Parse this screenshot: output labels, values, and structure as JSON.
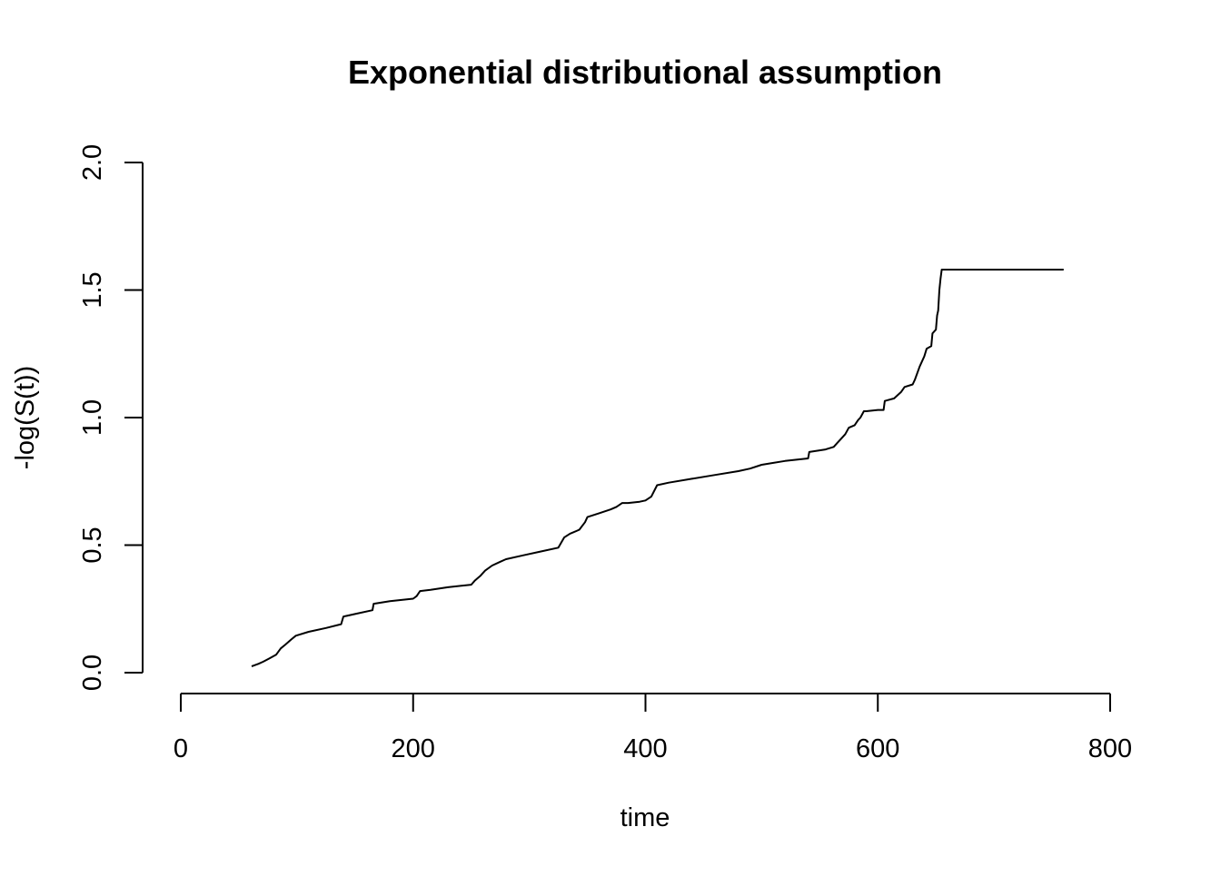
{
  "chart_data": {
    "type": "line",
    "title": "Exponential distributional assumption",
    "xlabel": "time",
    "ylabel": "-log(S(t))",
    "xlim": [
      0,
      800
    ],
    "ylim": [
      0,
      2
    ],
    "x_ticks": [
      0,
      200,
      400,
      600,
      800
    ],
    "y_ticks": [
      0.0,
      0.5,
      1.0,
      1.5,
      2.0
    ],
    "x_tick_labels": [
      "0",
      "200",
      "400",
      "600",
      "800"
    ],
    "y_tick_labels": [
      "0.0",
      "0.5",
      "1.0",
      "1.5",
      "2.0"
    ],
    "grid": false,
    "line_color": "#000000",
    "series": [
      {
        "x": [
          61,
          63,
          67,
          71,
          76,
          82,
          86,
          90,
          95,
          99,
          110,
          125,
          138,
          140,
          150,
          165,
          166,
          180,
          200,
          203,
          206,
          215,
          230,
          250,
          253,
          258,
          262,
          268,
          275,
          280,
          295,
          310,
          325,
          330,
          335,
          343,
          348,
          350,
          360,
          370,
          375,
          380,
          385,
          395,
          400,
          405,
          410,
          420,
          440,
          460,
          480,
          490,
          500,
          520,
          540,
          541,
          555,
          562,
          565,
          568,
          572,
          575,
          580,
          583,
          585,
          588,
          590,
          600,
          605,
          606,
          614,
          620,
          623,
          630,
          632,
          636,
          640,
          642,
          646,
          647,
          650,
          651,
          652,
          653,
          654,
          655,
          760
        ],
        "y": [
          0.025,
          0.028,
          0.035,
          0.043,
          0.055,
          0.07,
          0.095,
          0.11,
          0.13,
          0.145,
          0.16,
          0.175,
          0.19,
          0.22,
          0.23,
          0.245,
          0.27,
          0.28,
          0.29,
          0.3,
          0.32,
          0.325,
          0.335,
          0.345,
          0.36,
          0.38,
          0.4,
          0.42,
          0.435,
          0.445,
          0.46,
          0.475,
          0.49,
          0.53,
          0.545,
          0.56,
          0.59,
          0.61,
          0.625,
          0.64,
          0.65,
          0.665,
          0.665,
          0.67,
          0.675,
          0.69,
          0.735,
          0.745,
          0.76,
          0.775,
          0.79,
          0.8,
          0.815,
          0.83,
          0.84,
          0.865,
          0.875,
          0.885,
          0.9,
          0.915,
          0.935,
          0.96,
          0.97,
          0.99,
          1.0,
          1.025,
          1.025,
          1.03,
          1.03,
          1.065,
          1.075,
          1.1,
          1.12,
          1.13,
          1.15,
          1.2,
          1.24,
          1.27,
          1.28,
          1.33,
          1.345,
          1.4,
          1.42,
          1.5,
          1.545,
          1.58,
          1.58
        ]
      }
    ]
  }
}
